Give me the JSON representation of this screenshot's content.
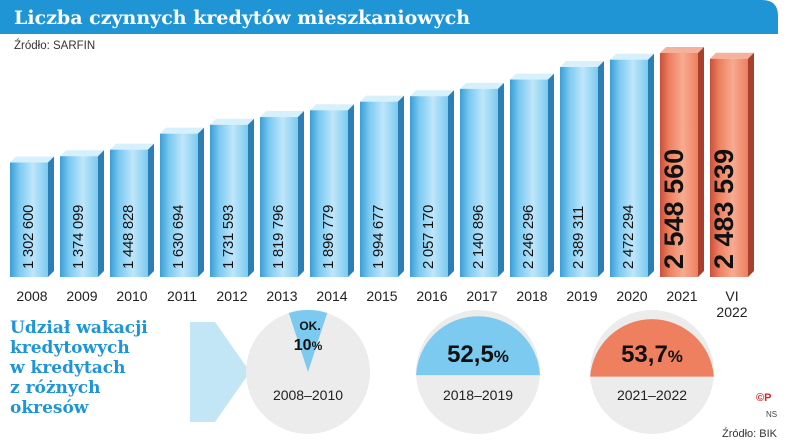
{
  "header": {
    "title": "Liczba czynnych kredytów mieszkaniowych",
    "source": "Źródło: SARFIN"
  },
  "colors": {
    "banner": "#1f95d6",
    "bar_blue": "#7ccaf0",
    "bar_blue_dark": "#3a9ed6",
    "bar_red": "#ee8060",
    "bar_red_dark": "#c9503a",
    "disc_grey": "#ececec"
  },
  "chart_data": {
    "type": "bar",
    "categories": [
      "2008",
      "2009",
      "2010",
      "2011",
      "2012",
      "2013",
      "2014",
      "2015",
      "2016",
      "2017",
      "2018",
      "2019",
      "2020",
      "2021",
      "VI 2022"
    ],
    "category_lines": [
      [
        "2008"
      ],
      [
        "2009"
      ],
      [
        "2010"
      ],
      [
        "2011"
      ],
      [
        "2012"
      ],
      [
        "2013"
      ],
      [
        "2014"
      ],
      [
        "2015"
      ],
      [
        "2016"
      ],
      [
        "2017"
      ],
      [
        "2018"
      ],
      [
        "2019"
      ],
      [
        "2020"
      ],
      [
        "2021"
      ],
      [
        "VI",
        "2022"
      ]
    ],
    "values": [
      1302600,
      1374099,
      1448828,
      1630694,
      1731593,
      1819796,
      1896779,
      1994677,
      2057170,
      2140896,
      2246296,
      2389311,
      2472294,
      2548560,
      2483539
    ],
    "value_labels": [
      "1 302 600",
      "1 374 099",
      "1 448 828",
      "1 630 694",
      "1 731 593",
      "1 819 796",
      "1 896 779",
      "1 994 677",
      "2 057 170",
      "2 140 896",
      "2 246 296",
      "2 389 311",
      "2 472 294",
      "2 548 560",
      "2 483 539"
    ],
    "highlighted": [
      "2021",
      "VI 2022"
    ]
  },
  "shares": {
    "label_lines": [
      "Udział wakacji",
      "kredytowych",
      "w kredytach",
      "z różnych",
      "okresów"
    ],
    "items": [
      {
        "period": "2008–2010",
        "prefix": "OK.",
        "value": "10",
        "unit": "%",
        "fraction": 0.1,
        "color": "#7ccaf0"
      },
      {
        "period": "2018–2019",
        "prefix": "",
        "value": "52,5",
        "unit": "%",
        "fraction": 0.525,
        "color": "#7ccaf0"
      },
      {
        "period": "2021–2022",
        "prefix": "",
        "value": "53,7",
        "unit": "%",
        "fraction": 0.537,
        "color": "#ee8060"
      }
    ],
    "source": "Źródło: BIK"
  },
  "logo": {
    "mark": "©P",
    "initials": "NS"
  }
}
